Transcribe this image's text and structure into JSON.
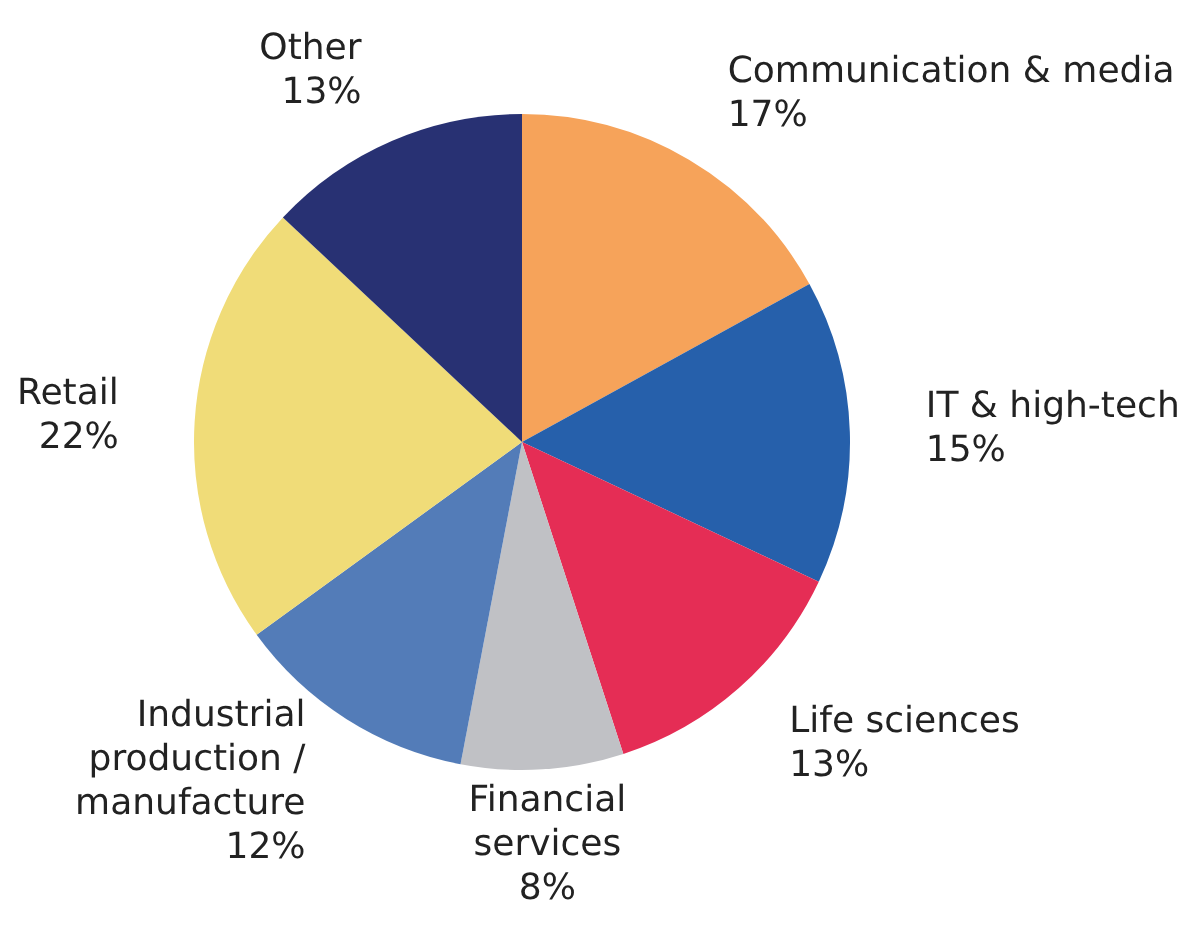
{
  "chart_data": {
    "type": "pie",
    "categories": [
      "Communication & media",
      "IT & high-tech",
      "Life sciences",
      "Financial\nservices",
      "Industrial\nproduction /\nmanufacture",
      "Retail",
      "Other"
    ],
    "values": [
      17,
      15,
      13,
      8,
      12,
      22,
      13
    ],
    "colors": [
      "#f6a35a",
      "#2660ab",
      "#e52d55",
      "#c0c1c5",
      "#537cb8",
      "#f0dc78",
      "#283173"
    ],
    "value_labels": [
      "17%",
      "15%",
      "13%",
      "8%",
      "12%",
      "22%",
      "13%"
    ],
    "legend": false
  }
}
